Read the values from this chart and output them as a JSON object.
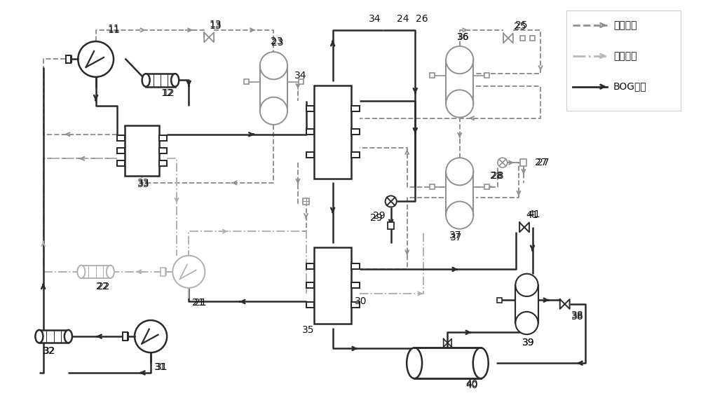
{
  "background": "#ffffff",
  "c_pre": "#909090",
  "c_main": "#b0b0b0",
  "c_bog": "#2a2a2a",
  "lw_pre": 1.4,
  "lw_main": 1.4,
  "lw_bog": 1.8,
  "legend": [
    {
      "label": "预冷循环",
      "style": "--",
      "color": "#909090"
    },
    {
      "label": "主冷循环",
      "style": "-.",
      "color": "#b8b8b8"
    },
    {
      "label": "BOG循环",
      "style": "-",
      "color": "#2a2a2a"
    }
  ],
  "figsize": [
    10.0,
    5.68
  ],
  "dpi": 100
}
